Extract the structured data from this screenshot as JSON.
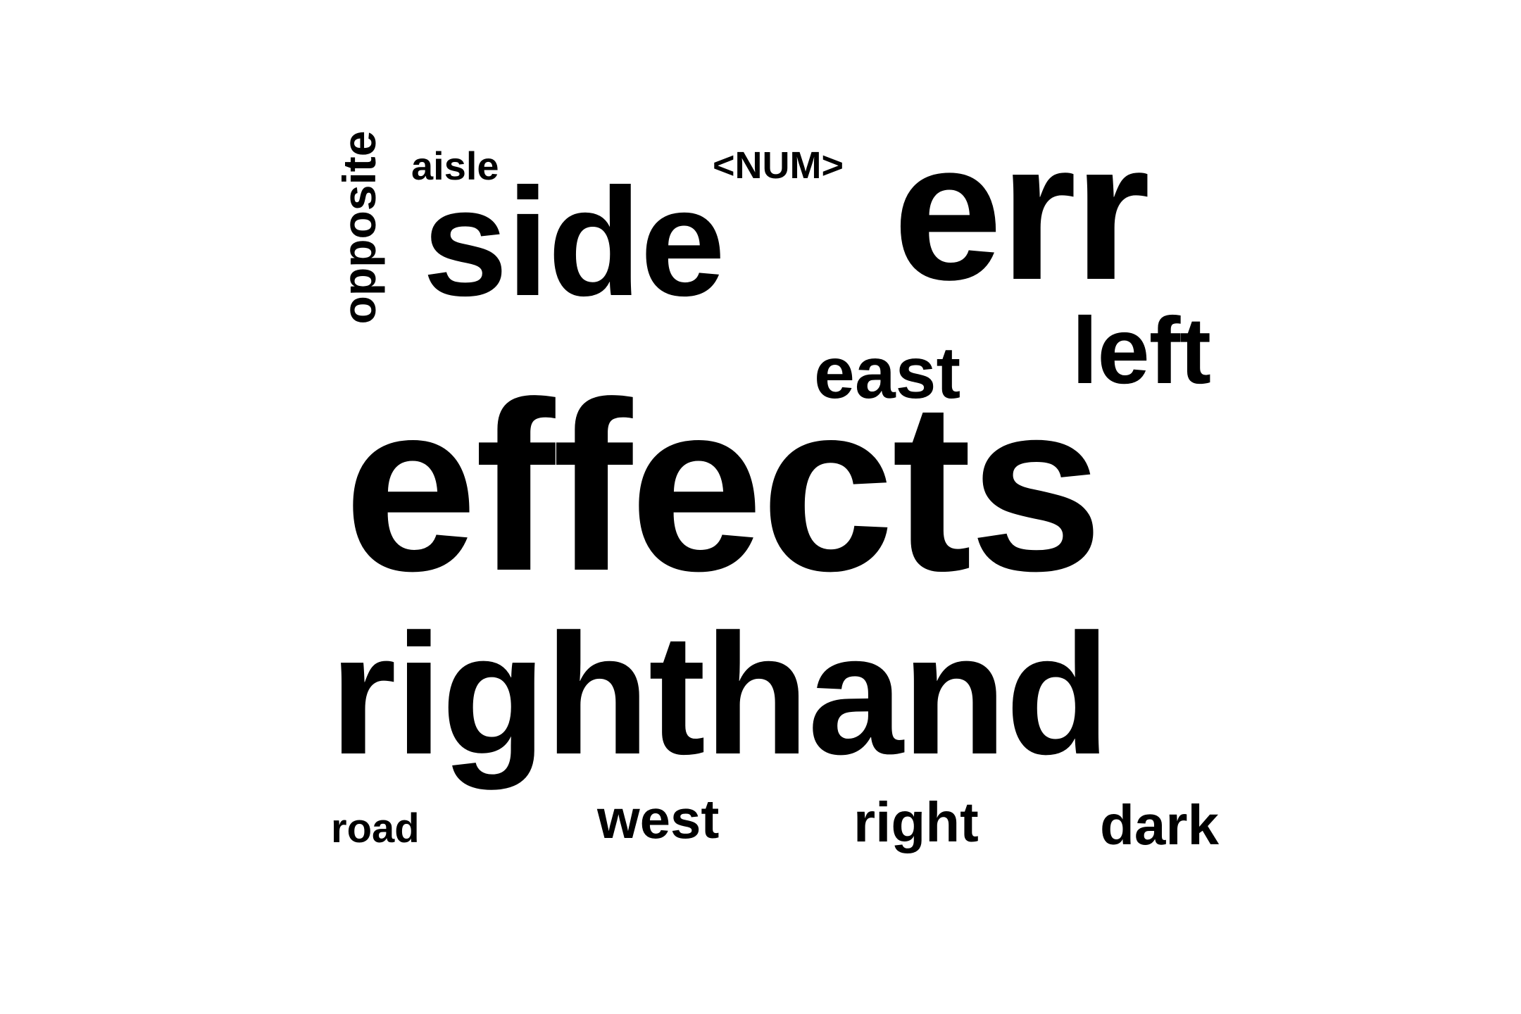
{
  "colors": {
    "background": "#ffffff",
    "text": "#000000"
  },
  "words": [
    {
      "text": "effects",
      "orientation": "horizontal"
    },
    {
      "text": "righthand",
      "orientation": "horizontal"
    },
    {
      "text": "err",
      "orientation": "horizontal"
    },
    {
      "text": "side",
      "orientation": "horizontal"
    },
    {
      "text": "left",
      "orientation": "horizontal"
    },
    {
      "text": "east",
      "orientation": "horizontal"
    },
    {
      "text": "opposite",
      "orientation": "vertical"
    },
    {
      "text": "west",
      "orientation": "horizontal"
    },
    {
      "text": "right",
      "orientation": "horizontal"
    },
    {
      "text": "dark",
      "orientation": "horizontal"
    },
    {
      "text": "<NUM>",
      "orientation": "horizontal"
    },
    {
      "text": "aisle",
      "orientation": "horizontal"
    },
    {
      "text": "road",
      "orientation": "horizontal"
    }
  ]
}
